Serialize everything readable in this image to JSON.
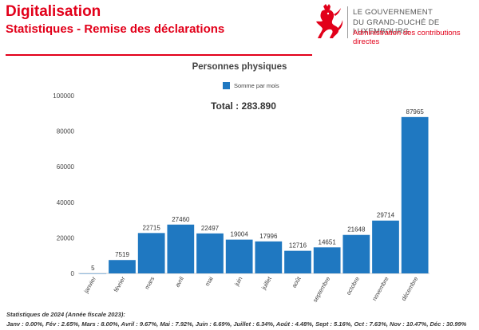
{
  "header": {
    "title": "Digitalisation",
    "subtitle": "Statistiques - Remise des déclarations"
  },
  "government": {
    "line1": "LE GOUVERNEMENT",
    "line2": "DU GRAND-DUCHÉ DE LUXEMBOURG",
    "line3": "Administration des contributions directes"
  },
  "colors": {
    "accent_red": "#e2001a",
    "bar_blue": "#1f78c1"
  },
  "chart_data": {
    "type": "bar",
    "title": "Personnes physiques",
    "annotation": "Total : 283.890",
    "categories": [
      "janvier",
      "février",
      "mars",
      "avril",
      "mai",
      "juin",
      "juillet",
      "août",
      "septembre",
      "octobre",
      "novembre",
      "décembre"
    ],
    "series": [
      {
        "name": "Somme par mois",
        "values": [
          5,
          7519,
          22715,
          27460,
          22497,
          19004,
          17996,
          12716,
          14651,
          21648,
          29714,
          87965
        ]
      }
    ],
    "ylim": [
      0,
      100000
    ],
    "yticks": [
      0,
      20000,
      40000,
      60000,
      80000,
      100000
    ],
    "xlabel": "",
    "ylabel": "",
    "legend_position": "top-center",
    "grid": false
  },
  "footnote": {
    "line1": "Statistiques de 2024 (Année fiscale 2023):",
    "line2": "Janv : 0.00%, Fév : 2.65%, Mars : 8.00%, Avril : 9.67%, Mai : 7.92%, Juin : 6.69%, Juillet : 6.34%, Août : 4.48%, Sept : 5.16%, Oct : 7.63%, Nov : 10.47%, Déc : 30.99%"
  }
}
